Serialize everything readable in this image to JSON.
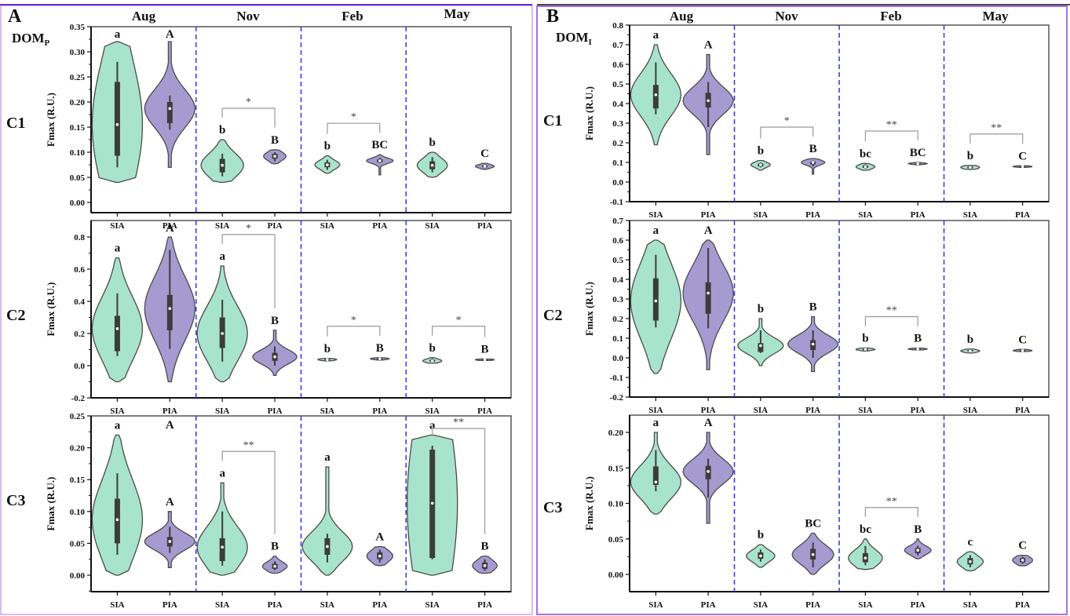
{
  "figure": {
    "panels": [
      {
        "id": "A",
        "letter": "A",
        "dom_label": "DOM",
        "dom_sub": "P"
      },
      {
        "id": "B",
        "letter": "B",
        "dom_label": "DOM",
        "dom_sub": "I"
      }
    ],
    "months": [
      "Aug",
      "Nov",
      "Feb",
      "May"
    ],
    "groups": [
      "SIA",
      "PIA"
    ],
    "components": [
      "C1",
      "C2",
      "C3"
    ],
    "ylabel": "Fmax (R.U.)",
    "colors": {
      "SIA": "#a8e3cd",
      "PIA": "#a59bd0",
      "box": "#3c3c3c",
      "separator": "#3b3bf0",
      "frame": "#a970e8",
      "bracket": "#999999"
    }
  },
  "chart_data": [
    {
      "type": "violin",
      "panel": "A",
      "component": "C1",
      "title": "DOMP C1",
      "ylabel": "Fmax (R.U.)",
      "ylim": [
        0,
        0.35
      ],
      "yticks": [
        "0.00",
        "0.05",
        "0.10",
        "0.15",
        "0.20",
        "0.25",
        "0.30",
        "0.35"
      ],
      "categories": [
        "Aug SIA",
        "Aug PIA",
        "Nov SIA",
        "Nov PIA",
        "Feb SIA",
        "Feb PIA",
        "May SIA",
        "May PIA"
      ],
      "violins": [
        {
          "min": 0.04,
          "max": 0.32,
          "q1": 0.093,
          "q3": 0.24,
          "median": 0.155,
          "wlo": 0.07,
          "whi": 0.28,
          "label": "a"
        },
        {
          "min": 0.07,
          "max": 0.32,
          "q1": 0.158,
          "q3": 0.2,
          "median": 0.187,
          "wlo": 0.145,
          "whi": 0.213,
          "label": "A"
        },
        {
          "min": 0.04,
          "max": 0.125,
          "q1": 0.06,
          "q3": 0.087,
          "median": 0.074,
          "wlo": 0.052,
          "whi": 0.097,
          "label": "b"
        },
        {
          "min": 0.077,
          "max": 0.105,
          "q1": 0.087,
          "q3": 0.097,
          "median": 0.092,
          "wlo": 0.082,
          "whi": 0.1,
          "label": "B"
        },
        {
          "min": 0.058,
          "max": 0.093,
          "q1": 0.07,
          "q3": 0.08,
          "median": 0.075,
          "wlo": 0.065,
          "whi": 0.085,
          "label": "b"
        },
        {
          "min": 0.055,
          "max": 0.095,
          "q1": 0.08,
          "q3": 0.086,
          "median": 0.083,
          "wlo": 0.078,
          "whi": 0.089,
          "label": "BC"
        },
        {
          "min": 0.05,
          "max": 0.1,
          "q1": 0.066,
          "q3": 0.082,
          "median": 0.074,
          "wlo": 0.06,
          "whi": 0.09,
          "label": "b"
        },
        {
          "min": 0.066,
          "max": 0.078,
          "q1": 0.07,
          "q3": 0.074,
          "median": 0.072,
          "wlo": 0.068,
          "whi": 0.076,
          "label": "C"
        }
      ],
      "significance": [
        {
          "month": "Nov",
          "mark": "*"
        },
        {
          "month": "Feb",
          "mark": "*"
        }
      ]
    },
    {
      "type": "violin",
      "panel": "A",
      "component": "C2",
      "ylabel": "Fmax (R.U.)",
      "ylim": [
        -0.2,
        0.9
      ],
      "yticks": [
        "-0.2",
        "0.0",
        "0.2",
        "0.4",
        "0.6",
        "0.8"
      ],
      "categories": [
        "Aug SIA",
        "Aug PIA",
        "Nov SIA",
        "Nov PIA",
        "Feb SIA",
        "Feb PIA",
        "May SIA",
        "May PIA"
      ],
      "violins": [
        {
          "min": -0.1,
          "max": 0.67,
          "q1": 0.09,
          "q3": 0.31,
          "median": 0.23,
          "wlo": 0.06,
          "whi": 0.45,
          "label": "a"
        },
        {
          "min": -0.1,
          "max": 0.8,
          "q1": 0.22,
          "q3": 0.44,
          "median": 0.355,
          "wlo": 0.105,
          "whi": 0.72,
          "label": "A"
        },
        {
          "min": -0.1,
          "max": 0.62,
          "q1": 0.11,
          "q3": 0.3,
          "median": 0.2,
          "wlo": 0.025,
          "whi": 0.41,
          "label": "a"
        },
        {
          "min": -0.06,
          "max": 0.22,
          "q1": 0.03,
          "q3": 0.08,
          "median": 0.055,
          "wlo": 0.0,
          "whi": 0.12,
          "label": "B"
        },
        {
          "min": 0.03,
          "max": 0.045,
          "q1": 0.035,
          "q3": 0.042,
          "median": 0.038,
          "wlo": 0.033,
          "whi": 0.044,
          "label": "b"
        },
        {
          "min": 0.035,
          "max": 0.05,
          "q1": 0.04,
          "q3": 0.046,
          "median": 0.043,
          "wlo": 0.038,
          "whi": 0.048,
          "label": "B"
        },
        {
          "min": 0.015,
          "max": 0.05,
          "q1": 0.025,
          "q3": 0.038,
          "median": 0.03,
          "wlo": 0.02,
          "whi": 0.045,
          "label": "b"
        },
        {
          "min": 0.032,
          "max": 0.042,
          "q1": 0.035,
          "q3": 0.04,
          "median": 0.037,
          "wlo": 0.033,
          "whi": 0.041,
          "label": "B"
        }
      ],
      "significance": [
        {
          "month": "Nov",
          "mark": "*"
        },
        {
          "month": "Feb",
          "mark": "*"
        },
        {
          "month": "May",
          "mark": "*"
        }
      ]
    },
    {
      "type": "violin",
      "panel": "A",
      "component": "C3",
      "ylabel": "Fmax (R.U.)",
      "ylim": [
        -0.025,
        0.25
      ],
      "yticks": [
        "0.00",
        "0.05",
        "0.10",
        "0.15",
        "0.20",
        "0.25"
      ],
      "categories": [
        "Aug SIA",
        "Aug PIA",
        "Nov SIA",
        "Nov PIA",
        "Feb SIA",
        "Feb PIA",
        "May SIA",
        "May PIA"
      ],
      "violins": [
        {
          "min": 0.0,
          "max": 0.22,
          "q1": 0.05,
          "q3": 0.12,
          "median": 0.087,
          "wlo": 0.032,
          "whi": 0.16,
          "label": "a",
          "toplabel": "A"
        },
        {
          "min": 0.012,
          "max": 0.1,
          "q1": 0.045,
          "q3": 0.06,
          "median": 0.053,
          "wlo": 0.035,
          "whi": 0.076,
          "label": "A"
        },
        {
          "min": 0.0,
          "max": 0.145,
          "q1": 0.022,
          "q3": 0.058,
          "median": 0.044,
          "wlo": 0.015,
          "whi": 0.1,
          "label": "a"
        },
        {
          "min": 0.003,
          "max": 0.03,
          "q1": 0.01,
          "q3": 0.018,
          "median": 0.014,
          "wlo": 0.008,
          "whi": 0.022,
          "label": "B"
        },
        {
          "min": 0.0,
          "max": 0.17,
          "q1": 0.032,
          "q3": 0.058,
          "median": 0.045,
          "wlo": 0.02,
          "whi": 0.065,
          "label": "a"
        },
        {
          "min": 0.015,
          "max": 0.045,
          "q1": 0.025,
          "q3": 0.036,
          "median": 0.03,
          "wlo": 0.02,
          "whi": 0.04,
          "label": "A"
        },
        {
          "min": 0.0,
          "max": 0.22,
          "q1": 0.027,
          "q3": 0.197,
          "median": 0.113,
          "wlo": 0.025,
          "whi": 0.203,
          "label": "a"
        },
        {
          "min": 0.003,
          "max": 0.03,
          "q1": 0.01,
          "q3": 0.02,
          "median": 0.015,
          "wlo": 0.007,
          "whi": 0.025,
          "label": "B"
        }
      ],
      "significance": [
        {
          "month": "Nov",
          "mark": "**"
        },
        {
          "month": "May",
          "mark": "**"
        }
      ]
    },
    {
      "type": "violin",
      "panel": "B",
      "component": "C1",
      "title": "DOMI C1",
      "ylabel": "Fmax (R.U.)",
      "ylim": [
        -0.1,
        0.8
      ],
      "yticks": [
        "-0.1",
        "0.0",
        "0.1",
        "0.2",
        "0.3",
        "0.4",
        "0.5",
        "0.6",
        "0.7",
        "0.8"
      ],
      "categories": [
        "Aug SIA",
        "Aug PIA",
        "Nov SIA",
        "Nov PIA",
        "Feb SIA",
        "Feb PIA",
        "May SIA",
        "May PIA"
      ],
      "violins": [
        {
          "min": 0.19,
          "max": 0.7,
          "q1": 0.375,
          "q3": 0.495,
          "median": 0.445,
          "wlo": 0.345,
          "whi": 0.61,
          "label": "a"
        },
        {
          "min": 0.14,
          "max": 0.65,
          "q1": 0.38,
          "q3": 0.455,
          "median": 0.415,
          "wlo": 0.28,
          "whi": 0.51,
          "label": "A"
        },
        {
          "min": 0.06,
          "max": 0.11,
          "q1": 0.08,
          "q3": 0.095,
          "median": 0.088,
          "wlo": 0.075,
          "whi": 0.1,
          "label": "b"
        },
        {
          "min": 0.04,
          "max": 0.12,
          "q1": 0.09,
          "q3": 0.105,
          "median": 0.1,
          "wlo": 0.08,
          "whi": 0.11,
          "label": "B"
        },
        {
          "min": 0.06,
          "max": 0.095,
          "q1": 0.072,
          "q3": 0.085,
          "median": 0.078,
          "wlo": 0.068,
          "whi": 0.09,
          "label": "bc"
        },
        {
          "min": 0.088,
          "max": 0.1,
          "q1": 0.092,
          "q3": 0.096,
          "median": 0.094,
          "wlo": 0.09,
          "whi": 0.098,
          "label": "BC"
        },
        {
          "min": 0.065,
          "max": 0.085,
          "q1": 0.07,
          "q3": 0.08,
          "median": 0.075,
          "wlo": 0.067,
          "whi": 0.083,
          "label": "b"
        },
        {
          "min": 0.075,
          "max": 0.083,
          "q1": 0.077,
          "q3": 0.081,
          "median": 0.079,
          "wlo": 0.076,
          "whi": 0.082,
          "label": "C"
        }
      ],
      "significance": [
        {
          "month": "Nov",
          "mark": "*"
        },
        {
          "month": "Feb",
          "mark": "**"
        },
        {
          "month": "May",
          "mark": "**"
        }
      ]
    },
    {
      "type": "violin",
      "panel": "B",
      "component": "C2",
      "ylabel": "Fmax (R.U.)",
      "ylim": [
        -0.2,
        0.7
      ],
      "yticks": [
        "-0.2",
        "-0.1",
        "0.0",
        "0.1",
        "0.2",
        "0.3",
        "0.4",
        "0.5",
        "0.6",
        "0.7"
      ],
      "categories": [
        "Aug SIA",
        "Aug PIA",
        "Nov SIA",
        "Nov PIA",
        "Feb SIA",
        "Feb PIA",
        "May SIA",
        "May PIA"
      ],
      "violins": [
        {
          "min": -0.08,
          "max": 0.6,
          "q1": 0.19,
          "q3": 0.405,
          "median": 0.29,
          "wlo": 0.155,
          "whi": 0.525,
          "label": "a"
        },
        {
          "min": -0.06,
          "max": 0.6,
          "q1": 0.225,
          "q3": 0.385,
          "median": 0.33,
          "wlo": 0.15,
          "whi": 0.56,
          "label": "A"
        },
        {
          "min": -0.04,
          "max": 0.2,
          "q1": 0.03,
          "q3": 0.075,
          "median": 0.062,
          "wlo": 0.025,
          "whi": 0.14,
          "label": "b"
        },
        {
          "min": -0.07,
          "max": 0.21,
          "q1": 0.04,
          "q3": 0.09,
          "median": 0.07,
          "wlo": 0.0,
          "whi": 0.14,
          "label": "B"
        },
        {
          "min": 0.035,
          "max": 0.05,
          "q1": 0.04,
          "q3": 0.046,
          "median": 0.043,
          "wlo": 0.038,
          "whi": 0.048,
          "label": "b"
        },
        {
          "min": 0.04,
          "max": 0.05,
          "q1": 0.043,
          "q3": 0.047,
          "median": 0.045,
          "wlo": 0.041,
          "whi": 0.049,
          "label": "B"
        },
        {
          "min": 0.025,
          "max": 0.045,
          "q1": 0.032,
          "q3": 0.04,
          "median": 0.035,
          "wlo": 0.028,
          "whi": 0.043,
          "label": "b"
        },
        {
          "min": 0.032,
          "max": 0.043,
          "q1": 0.035,
          "q3": 0.04,
          "median": 0.037,
          "wlo": 0.033,
          "whi": 0.041,
          "label": "C"
        }
      ],
      "significance": [
        {
          "month": "Feb",
          "mark": "**"
        }
      ]
    },
    {
      "type": "violin",
      "panel": "B",
      "component": "C3",
      "ylabel": "Fmax (R.U.)",
      "ylim": [
        -0.025,
        0.225
      ],
      "yticks": [
        "0.00",
        "0.05",
        "0.10",
        "0.15",
        "0.20"
      ],
      "categories": [
        "Aug SIA",
        "Aug PIA",
        "Nov SIA",
        "Nov PIA",
        "Feb SIA",
        "Feb PIA",
        "May SIA",
        "May PIA"
      ],
      "violins": [
        {
          "min": 0.085,
          "max": 0.2,
          "q1": 0.126,
          "q3": 0.152,
          "median": 0.13,
          "wlo": 0.117,
          "whi": 0.175,
          "label": "a"
        },
        {
          "min": 0.072,
          "max": 0.2,
          "q1": 0.134,
          "q3": 0.153,
          "median": 0.145,
          "wlo": 0.108,
          "whi": 0.163,
          "label": "A"
        },
        {
          "min": 0.01,
          "max": 0.042,
          "q1": 0.022,
          "q3": 0.031,
          "median": 0.026,
          "wlo": 0.018,
          "whi": 0.035,
          "label": "b"
        },
        {
          "min": 0.0,
          "max": 0.058,
          "q1": 0.021,
          "q3": 0.036,
          "median": 0.028,
          "wlo": 0.01,
          "whi": 0.045,
          "label": "BC"
        },
        {
          "min": 0.007,
          "max": 0.05,
          "q1": 0.017,
          "q3": 0.03,
          "median": 0.023,
          "wlo": 0.013,
          "whi": 0.04,
          "label": "bc"
        },
        {
          "min": 0.022,
          "max": 0.05,
          "q1": 0.03,
          "q3": 0.037,
          "median": 0.034,
          "wlo": 0.027,
          "whi": 0.04,
          "label": "B"
        },
        {
          "min": 0.005,
          "max": 0.032,
          "q1": 0.014,
          "q3": 0.023,
          "median": 0.018,
          "wlo": 0.01,
          "whi": 0.027,
          "label": "c"
        },
        {
          "min": 0.012,
          "max": 0.027,
          "q1": 0.017,
          "q3": 0.023,
          "median": 0.02,
          "wlo": 0.015,
          "whi": 0.025,
          "label": "C"
        }
      ],
      "significance": [
        {
          "month": "Feb",
          "mark": "**"
        }
      ]
    }
  ]
}
